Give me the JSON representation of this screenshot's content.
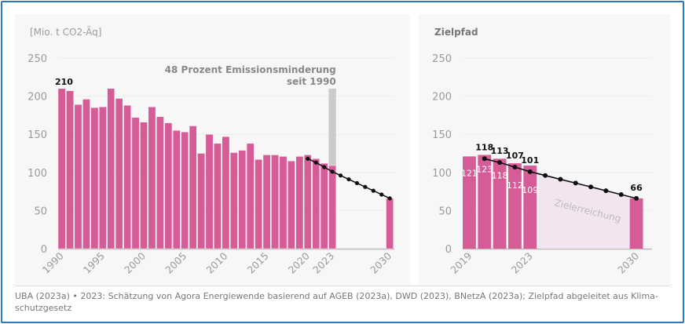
{
  "colors": {
    "bar": "#d65c98",
    "reference": "#cbcbcc",
    "path": "#111111",
    "target_area": "#f2e5ef",
    "grid": "#ececec",
    "tick": "#9a9a9a",
    "frame": "#2a7ac0"
  },
  "chart_data": [
    {
      "type": "bar",
      "ylabel": "[Mio. t CO2-Äq]",
      "ylim": [
        0,
        250
      ],
      "yticks": [
        0,
        50,
        100,
        150,
        200,
        250
      ],
      "xticks": [
        "1990",
        "1995",
        "2000",
        "2005",
        "2010",
        "2015",
        "2020",
        "2023",
        "2030"
      ],
      "grid": true,
      "years": [
        1990,
        1991,
        1992,
        1993,
        1994,
        1995,
        1996,
        1997,
        1998,
        1999,
        2000,
        2001,
        2002,
        2003,
        2004,
        2005,
        2006,
        2007,
        2008,
        2009,
        2010,
        2011,
        2012,
        2013,
        2014,
        2015,
        2016,
        2017,
        2018,
        2019,
        2020,
        2021,
        2022,
        2023,
        2030
      ],
      "values": [
        210,
        207,
        189,
        196,
        185,
        186,
        210,
        197,
        188,
        172,
        166,
        186,
        173,
        165,
        155,
        153,
        161,
        125,
        150,
        138,
        147,
        126,
        129,
        138,
        117,
        123,
        123,
        121,
        115,
        121,
        123,
        118,
        112,
        109,
        66
      ],
      "data_label": {
        "year": 1990,
        "text": "210"
      },
      "reference_bar": {
        "year": 2023,
        "value": 210
      },
      "annotation": [
        "48 Prozent Emissionsminderung",
        "seit 1990"
      ],
      "target_path": {
        "years": [
          2020,
          2021,
          2022,
          2023,
          2024,
          2025,
          2026,
          2027,
          2028,
          2029,
          2030
        ],
        "values": [
          118,
          113,
          107,
          101,
          96,
          91,
          86,
          81,
          76,
          71,
          66
        ]
      }
    },
    {
      "type": "bar",
      "title": "Zielpfad",
      "ylim": [
        0,
        250
      ],
      "yticks": [
        0,
        50,
        100,
        150,
        200,
        250
      ],
      "xticks": [
        "2019",
        "2023",
        "2030"
      ],
      "grid": true,
      "years": [
        2019,
        2020,
        2021,
        2022,
        2023,
        2030
      ],
      "values": [
        121,
        123,
        118,
        112,
        109,
        66
      ],
      "bar_labels": [
        "121",
        "123",
        "118",
        "112",
        "109",
        ""
      ],
      "target_path": {
        "years": [
          2020,
          2021,
          2022,
          2023,
          2024,
          2025,
          2026,
          2027,
          2028,
          2029,
          2030
        ],
        "values": [
          118,
          113,
          107,
          101,
          96,
          91,
          86,
          81,
          76,
          71,
          66
        ],
        "labels": [
          "118",
          "113",
          "107",
          "101",
          "",
          "",
          "",
          "",
          "",
          "",
          "66"
        ]
      },
      "area_label": "Zielerreichung"
    }
  ],
  "caption": "UBA (2023a) • 2023: Schätzung von Agora Energiewende basierend auf AGEB (2023a), DWD (2023), BNetzA (2023a); Zielpfad abgeleitet aus Klima-schutzgesetz"
}
